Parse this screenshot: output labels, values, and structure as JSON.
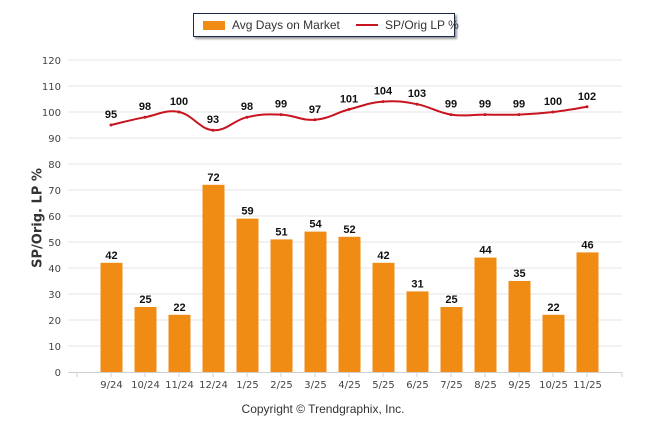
{
  "chart_data": {
    "type": "bar+line",
    "categories": [
      "9/24",
      "10/24",
      "11/24",
      "12/24",
      "1/25",
      "2/25",
      "3/25",
      "4/25",
      "5/25",
      "6/25",
      "7/25",
      "8/25",
      "9/25",
      "10/25",
      "11/25"
    ],
    "series": [
      {
        "name": "Avg Days on Market",
        "type": "bar",
        "color": "#f08c14",
        "values": [
          42,
          25,
          22,
          72,
          59,
          51,
          54,
          52,
          42,
          31,
          25,
          44,
          35,
          22,
          46
        ]
      },
      {
        "name": "SP/Orig LP %",
        "type": "line",
        "color": "#c8141e",
        "values": [
          95,
          98,
          100,
          93,
          98,
          99,
          97,
          101,
          104,
          103,
          99,
          99,
          99,
          100,
          102
        ]
      }
    ],
    "ylabel": "SP/Orig. LP %",
    "xlabel": "",
    "ylim": [
      0,
      120
    ],
    "yticks": [
      0,
      10,
      20,
      30,
      40,
      50,
      60,
      70,
      80,
      90,
      100,
      110,
      120
    ],
    "grid": true,
    "legend_position": "top-center"
  },
  "legend": {
    "bar_label": "Avg Days on Market",
    "line_label": "SP/Orig LP %"
  },
  "footer": {
    "copyright": "Copyright © Trendgraphix, Inc."
  }
}
